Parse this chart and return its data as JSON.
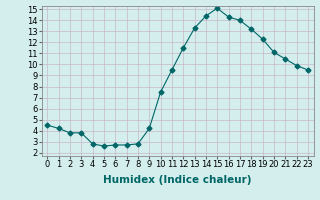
{
  "x": [
    0,
    1,
    2,
    3,
    4,
    5,
    6,
    7,
    8,
    9,
    10,
    11,
    12,
    13,
    14,
    15,
    16,
    17,
    18,
    19,
    20,
    21,
    22,
    23
  ],
  "y": [
    4.5,
    4.2,
    3.8,
    3.8,
    2.8,
    2.6,
    2.7,
    2.7,
    2.8,
    4.2,
    7.5,
    9.5,
    11.5,
    13.3,
    14.4,
    15.1,
    14.3,
    14.0,
    13.2,
    12.3,
    11.1,
    10.5,
    9.9,
    9.5
  ],
  "line_color": "#006666",
  "marker": "D",
  "marker_size": 2.5,
  "bg_color": "#d4eeee",
  "grid_color": "#c0d8d8",
  "xlabel": "Humidex (Indice chaleur)",
  "ylim": [
    2,
    15
  ],
  "xlim": [
    -0.5,
    23.5
  ],
  "yticks": [
    2,
    3,
    4,
    5,
    6,
    7,
    8,
    9,
    10,
    11,
    12,
    13,
    14,
    15
  ],
  "xticks": [
    0,
    1,
    2,
    3,
    4,
    5,
    6,
    7,
    8,
    9,
    10,
    11,
    12,
    13,
    14,
    15,
    16,
    17,
    18,
    19,
    20,
    21,
    22,
    23
  ],
  "tick_fontsize": 6,
  "xlabel_fontsize": 7.5,
  "xlabel_fontweight": "bold",
  "xlabel_color": "#006666"
}
